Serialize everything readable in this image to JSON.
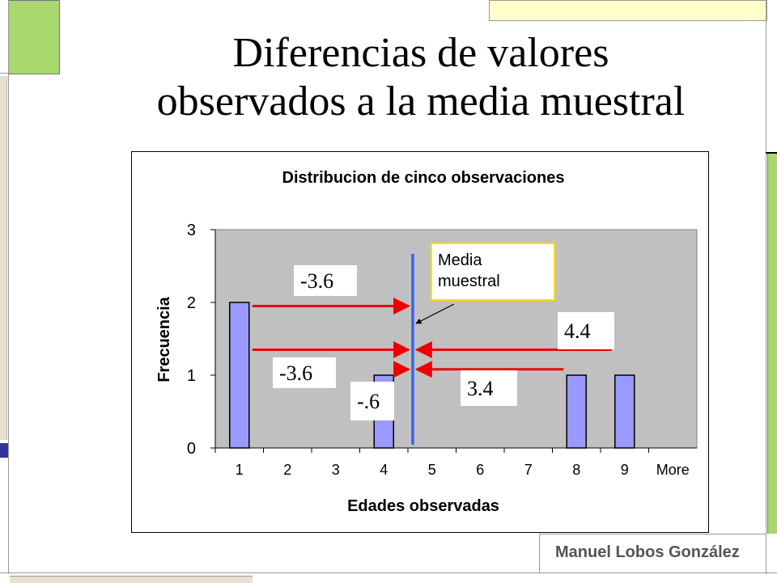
{
  "slide": {
    "title_line1": "Diferencias de valores",
    "title_line2": "observados a la media muestral",
    "author": "Manuel Lobos González"
  },
  "colors": {
    "bar_fill": "#9999ff",
    "plot_bg": "#c0c0c0",
    "arrow": "#ee0000",
    "mean_line": "#3366ee",
    "callout_border": "#ffdd00",
    "accent_green": "#a8d86e",
    "accent_yellow": "#ffffcc",
    "accent_navy": "#333399"
  },
  "chart_data": {
    "type": "bar",
    "title": "Distribucion de cinco observaciones",
    "xlabel": "Edades observadas",
    "ylabel": "Frecuencia",
    "categories": [
      "1",
      "2",
      "3",
      "4",
      "5",
      "6",
      "7",
      "8",
      "9",
      "More"
    ],
    "values": [
      2,
      0,
      0,
      1,
      0,
      0,
      0,
      1,
      1,
      0
    ],
    "yticks": [
      "0",
      "1",
      "2",
      "3"
    ],
    "ylim": [
      0,
      3
    ],
    "grid": false,
    "mean": 4.6,
    "mean_label": [
      "Media",
      "muestral"
    ],
    "deviations": [
      "-3.6",
      "-3.6",
      "-.6",
      "3.4",
      "4.4"
    ]
  }
}
